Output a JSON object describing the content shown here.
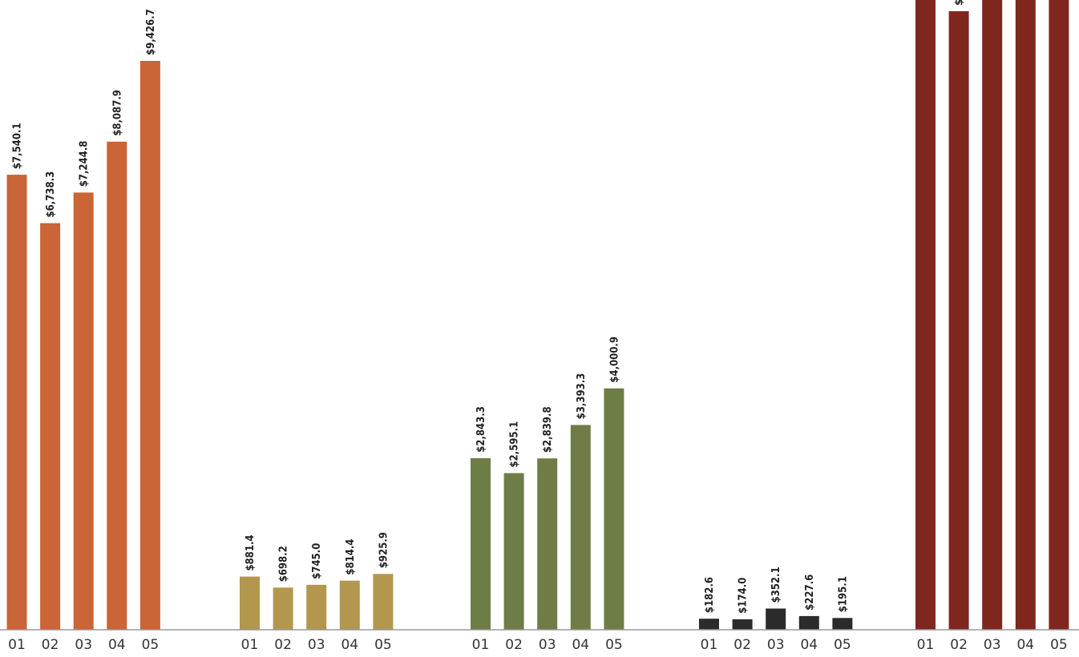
{
  "chart_data": {
    "type": "bar",
    "value_prefix": "$",
    "ylim": [
      0,
      11200
    ],
    "grid": false,
    "legend": "none",
    "categories": [
      "01",
      "02",
      "03",
      "04",
      "05"
    ],
    "series": [
      {
        "color": "#C96536",
        "values": [
          7540.1,
          6738.3,
          7244.8,
          8087.9,
          9426.7
        ],
        "labels": [
          "$7,540.1",
          "$6,738.3",
          "$7,244.8",
          "$8,087.9",
          "$9,426.7"
        ]
      },
      {
        "color": "#B4974E",
        "values": [
          881.4,
          698.2,
          745.0,
          814.4,
          925.9
        ],
        "labels": [
          "$881.4",
          "$698.2",
          "$745.0",
          "$814.4",
          "$925.9"
        ]
      },
      {
        "color": "#6E7D45",
        "values": [
          2843.3,
          2595.1,
          2839.8,
          3393.3,
          4000.9
        ],
        "labels": [
          "$2,843.3",
          "$2,595.1",
          "$2,839.8",
          "$3,393.3",
          "$4,000.9"
        ]
      },
      {
        "color": "#2B2B2B",
        "values": [
          182.6,
          174.0,
          352.1,
          227.6,
          195.1
        ],
        "labels": [
          "$182.6",
          "$174.0",
          "$352.1",
          "$227.6",
          "$195.1"
        ]
      },
      {
        "color": "#7F271F",
        "values": [
          11500,
          10250,
          11500,
          11500,
          11500
        ],
        "labels": [
          "",
          "$",
          "",
          "",
          ""
        ]
      }
    ]
  }
}
